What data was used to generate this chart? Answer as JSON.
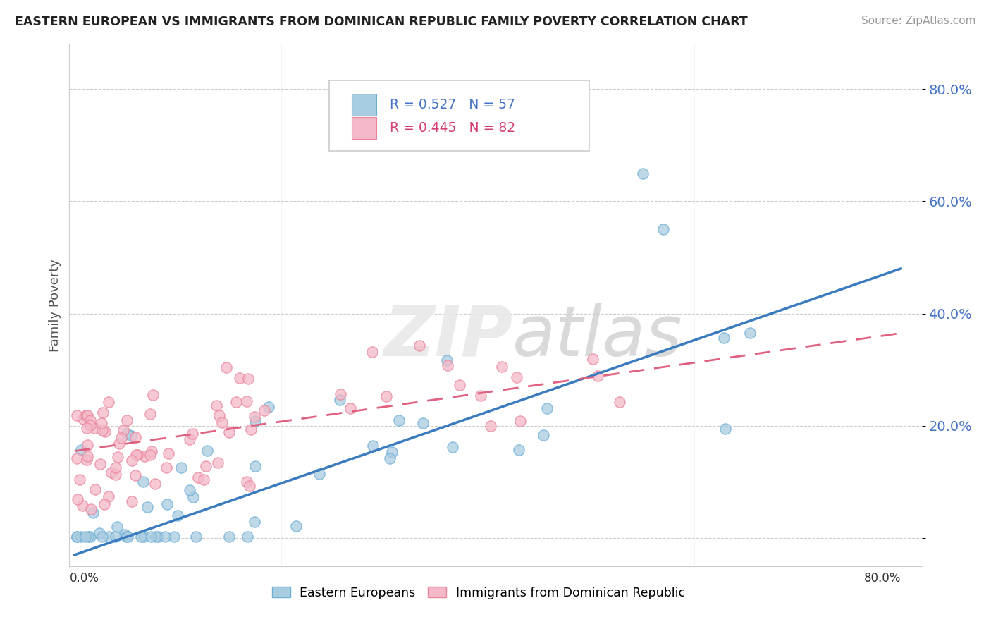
{
  "title": "EASTERN EUROPEAN VS IMMIGRANTS FROM DOMINICAN REPUBLIC FAMILY POVERTY CORRELATION CHART",
  "source": "Source: ZipAtlas.com",
  "ylabel": "Family Poverty",
  "xlim": [
    -0.005,
    0.82
  ],
  "ylim": [
    -0.05,
    0.88
  ],
  "yticks": [
    0.0,
    0.2,
    0.4,
    0.6,
    0.8
  ],
  "ytick_labels": [
    "",
    "20.0%",
    "40.0%",
    "60.0%",
    "80.0%"
  ],
  "blue_color": "#a8cce0",
  "blue_edge_color": "#6baed6",
  "pink_color": "#f4b8c8",
  "pink_edge_color": "#e8849a",
  "blue_line_color": "#3a7bbf",
  "pink_line_color": "#e06080",
  "tick_color": "#4472C4",
  "background_color": "#ffffff",
  "grid_color": "#cccccc",
  "legend1_label": "R = 0.527   N = 57",
  "legend2_label": "R = 0.445   N = 82",
  "blue_line_x0": 0.0,
  "blue_line_y0": -0.03,
  "blue_line_x1": 0.8,
  "blue_line_y1": 0.48,
  "pink_line_x0": 0.0,
  "pink_line_y0": 0.155,
  "pink_line_x1": 0.8,
  "pink_line_y1": 0.365,
  "seed_blue": 10,
  "seed_pink": 20,
  "n_blue": 57,
  "n_pink": 82
}
